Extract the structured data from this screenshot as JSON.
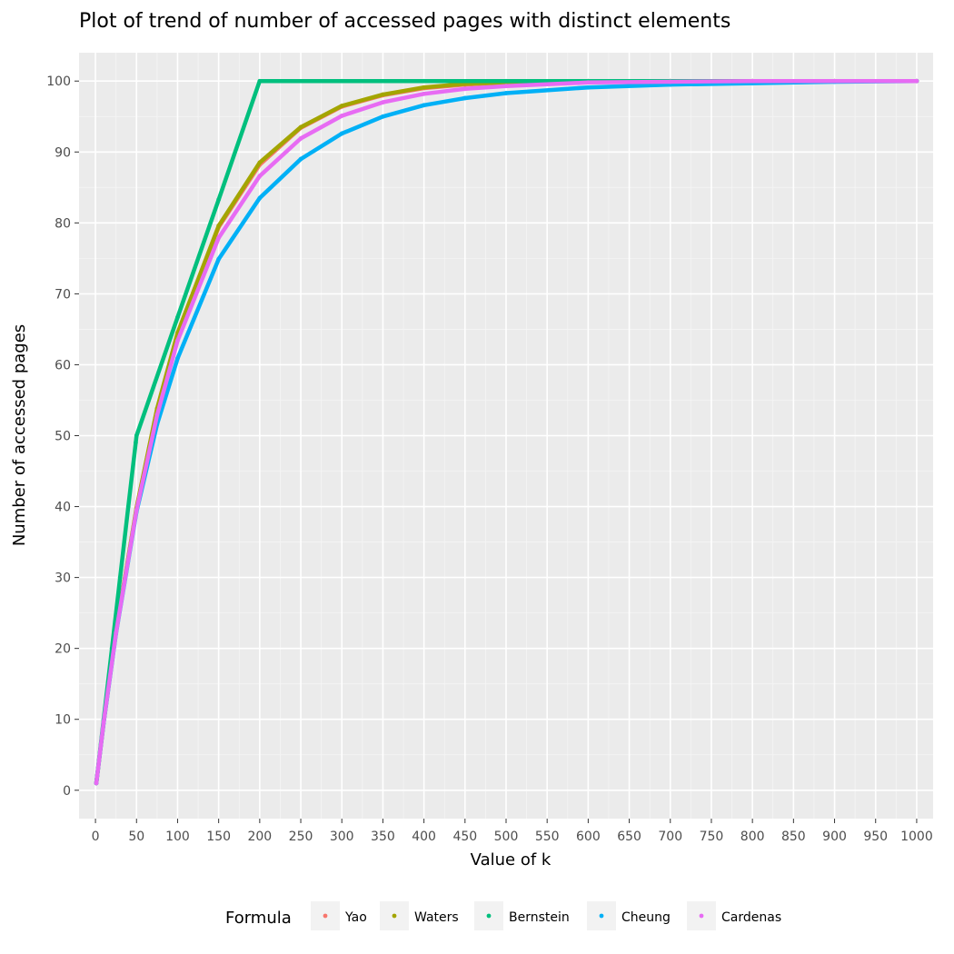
{
  "chart_data": {
    "type": "scatter",
    "title": "Plot of trend of number of accessed pages with distinct elements",
    "xlabel": "Value of k",
    "ylabel": "Number of accessed pages",
    "xlim": [
      -20,
      1020
    ],
    "ylim": [
      -4,
      104
    ],
    "x_ticks": [
      0,
      50,
      100,
      150,
      200,
      250,
      300,
      350,
      400,
      450,
      500,
      550,
      600,
      650,
      700,
      750,
      800,
      850,
      900,
      950,
      1000
    ],
    "y_ticks": [
      0,
      10,
      20,
      30,
      40,
      50,
      60,
      70,
      80,
      90,
      100
    ],
    "grid": true,
    "legend": {
      "title": "Formula",
      "position": "bottom",
      "entries": [
        "Yao",
        "Waters",
        "Bernstein",
        "Cheung",
        "Cardenas"
      ]
    },
    "series": [
      {
        "name": "Yao",
        "color": "#f8766d",
        "x": [
          1,
          10,
          25,
          50,
          75,
          100,
          150,
          200,
          250,
          300,
          350,
          400,
          450,
          500,
          600,
          700,
          800,
          900,
          1000
        ],
        "y": [
          1,
          9.6,
          22.4,
          39.8,
          53.7,
          64.3,
          79.4,
          88.2,
          93.4,
          96.4,
          98.0,
          99.0,
          99.5,
          99.8,
          99.9,
          100,
          100,
          100,
          100
        ]
      },
      {
        "name": "Waters",
        "color": "#a3a500",
        "x": [
          1,
          10,
          25,
          50,
          75,
          100,
          150,
          200,
          250,
          300,
          350,
          400,
          450,
          500,
          600,
          700,
          800,
          900,
          1000
        ],
        "y": [
          1,
          9.6,
          22.4,
          39.8,
          53.8,
          64.5,
          79.6,
          88.5,
          93.5,
          96.5,
          98.1,
          99.1,
          99.6,
          99.8,
          100,
          100,
          100,
          100,
          100
        ]
      },
      {
        "name": "Bernstein",
        "color": "#00bf7d",
        "x": [
          1,
          10,
          20,
          30,
          40,
          49,
          50,
          100,
          150,
          200,
          300,
          400,
          500,
          600,
          700,
          800,
          900,
          1000
        ],
        "y": [
          1,
          10,
          20,
          30,
          40,
          49,
          50,
          66.7,
          83.3,
          100,
          100,
          100,
          100,
          100,
          100,
          100,
          100,
          100
        ]
      },
      {
        "name": "Cheung",
        "color": "#00b0f6",
        "x": [
          1,
          10,
          25,
          50,
          75,
          100,
          150,
          200,
          250,
          300,
          350,
          400,
          450,
          500,
          600,
          700,
          800,
          900,
          1000
        ],
        "y": [
          1,
          9.5,
          22.1,
          39.3,
          51.6,
          60.9,
          74.9,
          83.5,
          89.0,
          92.6,
          95.0,
          96.6,
          97.6,
          98.3,
          99.1,
          99.5,
          99.7,
          99.9,
          100
        ]
      },
      {
        "name": "Cardenas",
        "color": "#e76bf3",
        "x": [
          1,
          10,
          25,
          50,
          75,
          100,
          150,
          200,
          250,
          300,
          350,
          400,
          450,
          500,
          600,
          700,
          800,
          900,
          1000
        ],
        "y": [
          1,
          9.6,
          22.2,
          39.5,
          52.9,
          63.4,
          77.9,
          86.6,
          91.9,
          95.1,
          97.0,
          98.2,
          98.9,
          99.3,
          99.8,
          99.9,
          100,
          100,
          100
        ]
      }
    ]
  }
}
